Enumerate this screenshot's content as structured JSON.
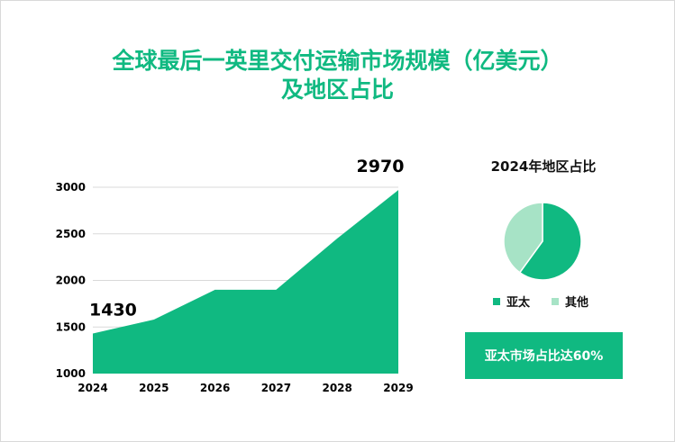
{
  "title_line1": "全球最后一英里交付运输市场规模（亿美元）",
  "title_line2": "及地区占比",
  "chart_data": [
    {
      "type": "area",
      "title": "全球最后一英里交付运输市场规模（亿美元）及地区占比",
      "categories": [
        "2024",
        "2025",
        "2026",
        "2027",
        "2028",
        "2029"
      ],
      "values": [
        1430,
        1580,
        1900,
        1900,
        2450,
        2970
      ],
      "yticks": [
        "1000",
        "1500",
        "2000",
        "2500",
        "3000"
      ],
      "ylim": [
        1000,
        3000
      ],
      "data_labels": [
        {
          "category": "2024",
          "text": "1430"
        },
        {
          "category": "2029",
          "text": "2970"
        }
      ],
      "color": "#10b981",
      "grid": true
    },
    {
      "type": "pie",
      "title": "2024年地区占比",
      "slices": [
        {
          "name": "亚太",
          "value": 60,
          "color": "#10b981"
        },
        {
          "name": "其他",
          "value": 40,
          "color": "#a7e3c6"
        }
      ]
    }
  ],
  "badge": "亚太市场占比达60%"
}
